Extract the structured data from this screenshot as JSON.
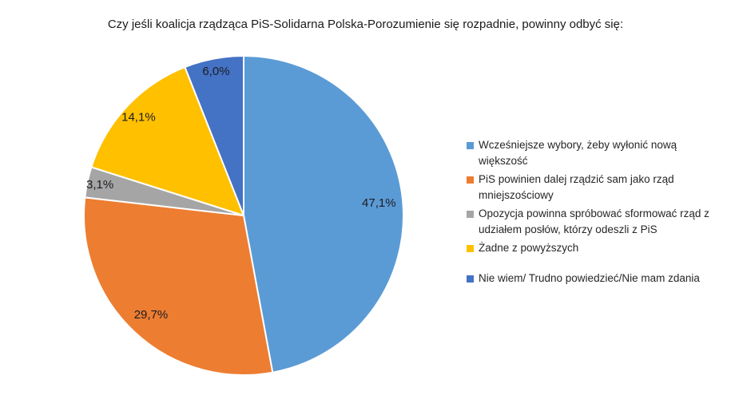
{
  "chart_data": {
    "type": "pie",
    "title": "Czy jeśli koalicja rządząca PiS-Solidarna Polska-Porozumienie się rozpadnie, powinny odbyć się:",
    "direction": "clockwise",
    "start_angle_deg": 0,
    "legend_position": "right",
    "grid": false,
    "slices": [
      {
        "label": "Wcześniejsze wybory, żeby wyłonić nową większość",
        "value": 47.1,
        "display": "47,1%",
        "color": "#5B9BD5"
      },
      {
        "label": "PiS powinien dalej rządzić sam jako rząd mniejszościowy",
        "value": 29.7,
        "display": "29,7%",
        "color": "#ED7D31"
      },
      {
        "label": "Opozycja powinna spróbować sformować rząd z udziałem posłów, którzy odeszli z PiS",
        "value": 3.1,
        "display": "3,1%",
        "color": "#A5A5A5"
      },
      {
        "label": "Żadne z powyższych",
        "value": 14.1,
        "display": "14,1%",
        "color": "#FFC000"
      },
      {
        "label": "Nie wiem/ Trudno powiedzieć/Nie mam zdania",
        "value": 6.0,
        "display": "6,0%",
        "color": "#4472C4"
      }
    ]
  },
  "colors": {
    "background": "#FFFFFF",
    "title_text": "#1A1A1A",
    "label_text": "#1C1C24",
    "legend_text": "#262626",
    "slice_border": "#FFFFFF"
  }
}
